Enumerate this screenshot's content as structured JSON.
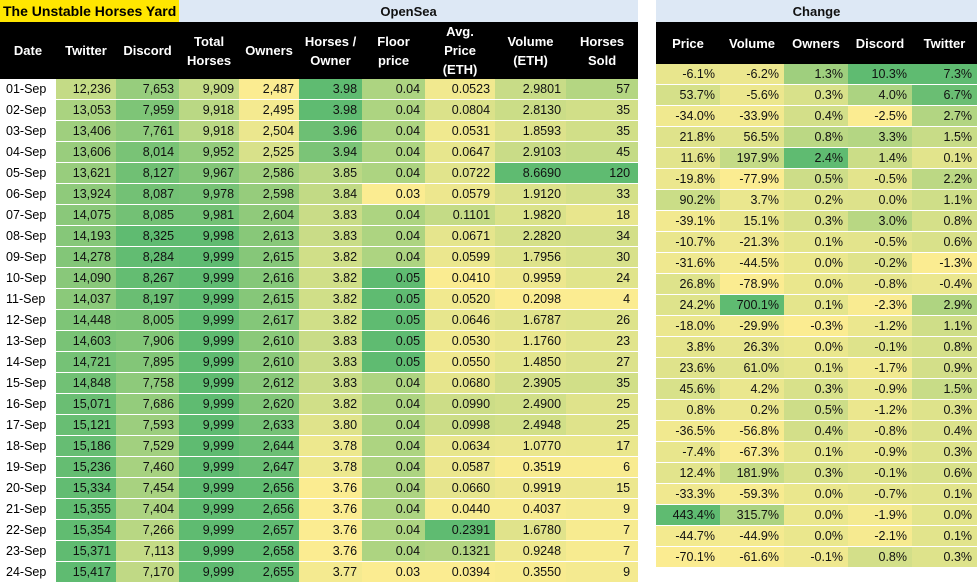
{
  "title": "The Unstable Horses Yard",
  "opensea_label": "OpenSea",
  "change_label": "Change",
  "headers": [
    "Date",
    "Twitter",
    "Discord",
    "Total Horses",
    "Owners",
    "Horses / Owner",
    "Floor price",
    "Avg. Price (ETH)",
    "Volume (ETH)",
    "Horses Sold"
  ],
  "change_headers": [
    "Price",
    "Volume",
    "Owners",
    "Discord",
    "Twitter"
  ],
  "rows": [
    [
      "01-Sep",
      "12,236",
      "7,653",
      "9,909",
      "2,487",
      "3.98",
      "0.04",
      "0.0523",
      "2.9801",
      "57"
    ],
    [
      "02-Sep",
      "13,053",
      "7,959",
      "9,918",
      "2,495",
      "3.98",
      "0.04",
      "0.0804",
      "2.8130",
      "35"
    ],
    [
      "03-Sep",
      "13,406",
      "7,761",
      "9,918",
      "2,504",
      "3.96",
      "0.04",
      "0.0531",
      "1.8593",
      "35"
    ],
    [
      "04-Sep",
      "13,606",
      "8,014",
      "9,952",
      "2,525",
      "3.94",
      "0.04",
      "0.0647",
      "2.9103",
      "45"
    ],
    [
      "05-Sep",
      "13,621",
      "8,127",
      "9,967",
      "2,586",
      "3.85",
      "0.04",
      "0.0722",
      "8.6690",
      "120"
    ],
    [
      "06-Sep",
      "13,924",
      "8,087",
      "9,978",
      "2,598",
      "3.84",
      "0.03",
      "0.0579",
      "1.9120",
      "33"
    ],
    [
      "07-Sep",
      "14,075",
      "8,085",
      "9,981",
      "2,604",
      "3.83",
      "0.04",
      "0.1101",
      "1.9820",
      "18"
    ],
    [
      "08-Sep",
      "14,193",
      "8,325",
      "9,998",
      "2,613",
      "3.83",
      "0.04",
      "0.0671",
      "2.2820",
      "34"
    ],
    [
      "09-Sep",
      "14,278",
      "8,284",
      "9,999",
      "2,615",
      "3.82",
      "0.04",
      "0.0599",
      "1.7956",
      "30"
    ],
    [
      "10-Sep",
      "14,090",
      "8,267",
      "9,999",
      "2,616",
      "3.82",
      "0.05",
      "0.0410",
      "0.9959",
      "24"
    ],
    [
      "11-Sep",
      "14,037",
      "8,197",
      "9,999",
      "2,615",
      "3.82",
      "0.05",
      "0.0520",
      "0.2098",
      "4"
    ],
    [
      "12-Sep",
      "14,448",
      "8,005",
      "9,999",
      "2,617",
      "3.82",
      "0.05",
      "0.0646",
      "1.6787",
      "26"
    ],
    [
      "13-Sep",
      "14,603",
      "7,906",
      "9,999",
      "2,610",
      "3.83",
      "0.05",
      "0.0530",
      "1.1760",
      "23"
    ],
    [
      "14-Sep",
      "14,721",
      "7,895",
      "9,999",
      "2,610",
      "3.83",
      "0.05",
      "0.0550",
      "1.4850",
      "27"
    ],
    [
      "15-Sep",
      "14,848",
      "7,758",
      "9,999",
      "2,612",
      "3.83",
      "0.04",
      "0.0680",
      "2.3905",
      "35"
    ],
    [
      "16-Sep",
      "15,071",
      "7,686",
      "9,999",
      "2,620",
      "3.82",
      "0.04",
      "0.0990",
      "2.4900",
      "25"
    ],
    [
      "17-Sep",
      "15,121",
      "7,593",
      "9,999",
      "2,633",
      "3.80",
      "0.04",
      "0.0998",
      "2.4948",
      "25"
    ],
    [
      "18-Sep",
      "15,186",
      "7,529",
      "9,999",
      "2,644",
      "3.78",
      "0.04",
      "0.0634",
      "1.0770",
      "17"
    ],
    [
      "19-Sep",
      "15,236",
      "7,460",
      "9,999",
      "2,647",
      "3.78",
      "0.04",
      "0.0587",
      "0.3519",
      "6"
    ],
    [
      "20-Sep",
      "15,334",
      "7,454",
      "9,999",
      "2,656",
      "3.76",
      "0.04",
      "0.0660",
      "0.9919",
      "15"
    ],
    [
      "21-Sep",
      "15,355",
      "7,404",
      "9,999",
      "2,656",
      "3.76",
      "0.04",
      "0.0440",
      "0.4037",
      "9"
    ],
    [
      "22-Sep",
      "15,354",
      "7,266",
      "9,999",
      "2,657",
      "3.76",
      "0.04",
      "0.2391",
      "1.6780",
      "7"
    ],
    [
      "23-Sep",
      "15,371",
      "7,113",
      "9,999",
      "2,658",
      "3.76",
      "0.04",
      "0.1321",
      "0.9248",
      "7"
    ],
    [
      "24-Sep",
      "15,417",
      "7,170",
      "9,999",
      "2,655",
      "3.77",
      "0.03",
      "0.0394",
      "0.3550",
      "9"
    ]
  ],
  "change_rows": [
    [
      "-6.1%",
      "-6.2%",
      "1.3%",
      "10.3%",
      "7.3%"
    ],
    [
      "53.7%",
      "-5.6%",
      "0.3%",
      "4.0%",
      "6.7%"
    ],
    [
      "-34.0%",
      "-33.9%",
      "0.4%",
      "-2.5%",
      "2.7%"
    ],
    [
      "21.8%",
      "56.5%",
      "0.8%",
      "3.3%",
      "1.5%"
    ],
    [
      "11.6%",
      "197.9%",
      "2.4%",
      "1.4%",
      "0.1%"
    ],
    [
      "-19.8%",
      "-77.9%",
      "0.5%",
      "-0.5%",
      "2.2%"
    ],
    [
      "90.2%",
      "3.7%",
      "0.2%",
      "0.0%",
      "1.1%"
    ],
    [
      "-39.1%",
      "15.1%",
      "0.3%",
      "3.0%",
      "0.8%"
    ],
    [
      "-10.7%",
      "-21.3%",
      "0.1%",
      "-0.5%",
      "0.6%"
    ],
    [
      "-31.6%",
      "-44.5%",
      "0.0%",
      "-0.2%",
      "-1.3%"
    ],
    [
      "26.8%",
      "-78.9%",
      "0.0%",
      "-0.8%",
      "-0.4%"
    ],
    [
      "24.2%",
      "700.1%",
      "0.1%",
      "-2.3%",
      "2.9%"
    ],
    [
      "-18.0%",
      "-29.9%",
      "-0.3%",
      "-1.2%",
      "1.1%"
    ],
    [
      "3.8%",
      "26.3%",
      "0.0%",
      "-0.1%",
      "0.8%"
    ],
    [
      "23.6%",
      "61.0%",
      "0.1%",
      "-1.7%",
      "0.9%"
    ],
    [
      "45.6%",
      "4.2%",
      "0.3%",
      "-0.9%",
      "1.5%"
    ],
    [
      "0.8%",
      "0.2%",
      "0.5%",
      "-1.2%",
      "0.3%"
    ],
    [
      "-36.5%",
      "-56.8%",
      "0.4%",
      "-0.8%",
      "0.4%"
    ],
    [
      "-7.4%",
      "-67.3%",
      "0.1%",
      "-0.9%",
      "0.3%"
    ],
    [
      "12.4%",
      "181.9%",
      "0.3%",
      "-0.1%",
      "0.6%"
    ],
    [
      "-33.3%",
      "-59.3%",
      "0.0%",
      "-0.7%",
      "0.1%"
    ],
    [
      "443.4%",
      "315.7%",
      "0.0%",
      "-1.9%",
      "0.0%"
    ],
    [
      "-44.7%",
      "-44.9%",
      "0.0%",
      "-2.1%",
      "0.1%"
    ],
    [
      "-70.1%",
      "-61.6%",
      "-0.1%",
      "0.8%",
      "0.3%"
    ]
  ],
  "colors": {
    "title_bg": "#ffe600",
    "band_bg": "#dde8f5",
    "header_bg": "#000000",
    "scale_low": "#fbec91",
    "scale_high": "#5fbb71"
  }
}
